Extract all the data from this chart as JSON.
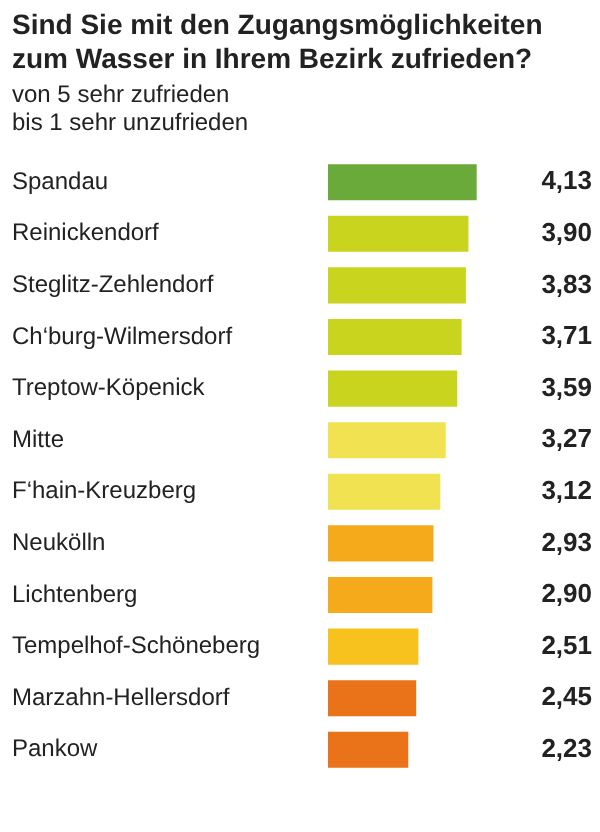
{
  "chart_data": {
    "type": "bar",
    "orientation": "horizontal",
    "title": "Sind Sie mit den Zugangsmöglichkeiten zum Wasser in Ihrem Bezirk zufrieden?",
    "subtitle": "von 5 sehr zufrieden\nbis 1 sehr unzufrieden",
    "categories": [
      "Spandau",
      "Reinickendorf",
      "Steglitz-Zehlendorf",
      "Ch‘burg-Wilmersdorf",
      "Treptow-Köpenick",
      "Mitte",
      "F‘hain-Kreuzberg",
      "Neukölln",
      "Lichtenberg",
      "Tempelhof-Schöneberg",
      "Marzahn-Hellersdorf",
      "Pankow"
    ],
    "values": [
      4.13,
      3.9,
      3.83,
      3.71,
      3.59,
      3.27,
      3.12,
      2.93,
      2.9,
      2.51,
      2.45,
      2.23
    ],
    "value_labels": [
      "4,13",
      "3,90",
      "3,83",
      "3,71",
      "3,59",
      "3,27",
      "3,12",
      "2,93",
      "2,90",
      "2,51",
      "2,45",
      "2,23"
    ],
    "colors": [
      "#6aaa3a",
      "#c8d41e",
      "#c8d41e",
      "#c8d41e",
      "#c8d41e",
      "#f0e250",
      "#f0e250",
      "#f5aa1c",
      "#f5aa1c",
      "#f7c11e",
      "#ea7219",
      "#ea7219"
    ],
    "legend": false
  }
}
